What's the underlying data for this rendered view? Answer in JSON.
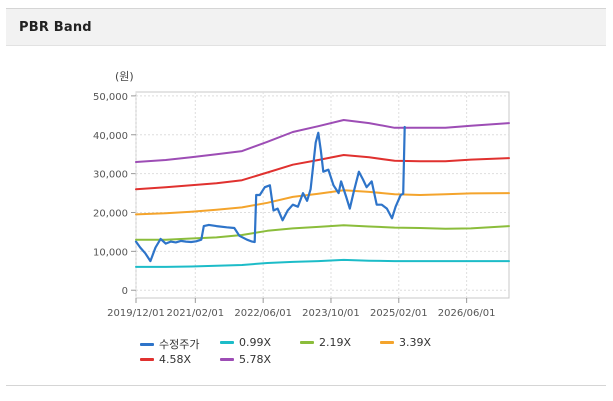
{
  "header": {
    "title": "PBR Band"
  },
  "chart_data": {
    "type": "line",
    "unit_label": "(원)",
    "y_ticks": [
      "50,000",
      "40,000",
      "30,000",
      "20,000",
      "10,000",
      "0"
    ],
    "y_tick_values": [
      50000,
      40000,
      30000,
      20000,
      10000,
      0
    ],
    "ylim": [
      -2000,
      51000
    ],
    "x_ticks": [
      "2019/12/01",
      "2021/02/01",
      "2022/06/01",
      "2023/10/01",
      "2025/02/01",
      "2026/06/01"
    ],
    "x_tick_values": [
      2019.917,
      2021.083,
      2022.417,
      2023.75,
      2025.083,
      2026.417
    ],
    "xlim": [
      2019.917,
      2027.25
    ],
    "grid": true,
    "legend_position": "bottom",
    "series": [
      {
        "name": "수정주가",
        "color": "#2e74c9",
        "width": 2.2,
        "points": [
          [
            2019.917,
            12500
          ],
          [
            2020.0,
            11000
          ],
          [
            2020.1,
            9500
          ],
          [
            2020.2,
            7500
          ],
          [
            2020.3,
            11000
          ],
          [
            2020.4,
            13200
          ],
          [
            2020.5,
            12000
          ],
          [
            2020.6,
            12500
          ],
          [
            2020.7,
            12300
          ],
          [
            2020.8,
            12700
          ],
          [
            2020.9,
            12500
          ],
          [
            2021.0,
            12400
          ],
          [
            2021.1,
            12600
          ],
          [
            2021.2,
            13000
          ],
          [
            2021.25,
            16500
          ],
          [
            2021.35,
            16800
          ],
          [
            2021.5,
            16500
          ],
          [
            2021.7,
            16200
          ],
          [
            2021.85,
            16000
          ],
          [
            2021.95,
            14000
          ],
          [
            2022.1,
            13000
          ],
          [
            2022.2,
            12500
          ],
          [
            2022.25,
            12400
          ],
          [
            2022.28,
            24500
          ],
          [
            2022.35,
            24500
          ],
          [
            2022.45,
            26500
          ],
          [
            2022.55,
            27000
          ],
          [
            2022.62,
            20500
          ],
          [
            2022.7,
            21000
          ],
          [
            2022.8,
            18000
          ],
          [
            2022.9,
            20500
          ],
          [
            2023.0,
            22000
          ],
          [
            2023.1,
            21500
          ],
          [
            2023.2,
            25000
          ],
          [
            2023.28,
            23000
          ],
          [
            2023.35,
            26000
          ],
          [
            2023.45,
            38000
          ],
          [
            2023.5,
            40500
          ],
          [
            2023.55,
            36000
          ],
          [
            2023.6,
            30500
          ],
          [
            2023.7,
            31000
          ],
          [
            2023.8,
            27000
          ],
          [
            2023.9,
            25000
          ],
          [
            2023.95,
            28000
          ],
          [
            2024.05,
            24000
          ],
          [
            2024.12,
            21000
          ],
          [
            2024.2,
            25500
          ],
          [
            2024.3,
            30500
          ],
          [
            2024.38,
            28500
          ],
          [
            2024.45,
            26500
          ],
          [
            2024.55,
            28000
          ],
          [
            2024.65,
            22000
          ],
          [
            2024.75,
            22000
          ],
          [
            2024.85,
            21000
          ],
          [
            2024.95,
            18500
          ],
          [
            2025.02,
            21500
          ],
          [
            2025.12,
            24500
          ],
          [
            2025.17,
            24800
          ],
          [
            2025.2,
            42000
          ]
        ]
      },
      {
        "name": "0.99X",
        "color": "#1cbcc8",
        "width": 2,
        "points": [
          [
            2019.917,
            6000
          ],
          [
            2020.5,
            6000
          ],
          [
            2021.0,
            6100
          ],
          [
            2021.5,
            6300
          ],
          [
            2022.0,
            6500
          ],
          [
            2022.5,
            7000
          ],
          [
            2023.0,
            7300
          ],
          [
            2023.5,
            7500
          ],
          [
            2024.0,
            7800
          ],
          [
            2024.5,
            7600
          ],
          [
            2025.0,
            7500
          ],
          [
            2025.5,
            7500
          ],
          [
            2026.0,
            7500
          ],
          [
            2026.5,
            7500
          ],
          [
            2027.25,
            7500
          ]
        ]
      },
      {
        "name": "2.19X",
        "color": "#8bbd3b",
        "width": 2,
        "points": [
          [
            2019.917,
            13000
          ],
          [
            2020.5,
            13000
          ],
          [
            2021.0,
            13300
          ],
          [
            2021.5,
            13600
          ],
          [
            2022.0,
            14200
          ],
          [
            2022.5,
            15300
          ],
          [
            2023.0,
            15900
          ],
          [
            2023.5,
            16300
          ],
          [
            2024.0,
            16700
          ],
          [
            2024.5,
            16400
          ],
          [
            2025.0,
            16100
          ],
          [
            2025.5,
            16000
          ],
          [
            2026.0,
            15800
          ],
          [
            2026.5,
            15900
          ],
          [
            2027.25,
            16500
          ]
        ]
      },
      {
        "name": "3.39X",
        "color": "#f4a42c",
        "width": 2,
        "points": [
          [
            2019.917,
            19500
          ],
          [
            2020.5,
            19800
          ],
          [
            2021.0,
            20200
          ],
          [
            2021.5,
            20700
          ],
          [
            2022.0,
            21300
          ],
          [
            2022.5,
            22500
          ],
          [
            2023.0,
            24000
          ],
          [
            2023.5,
            24800
          ],
          [
            2024.0,
            25700
          ],
          [
            2024.5,
            25300
          ],
          [
            2025.0,
            24700
          ],
          [
            2025.5,
            24500
          ],
          [
            2026.0,
            24700
          ],
          [
            2026.5,
            24900
          ],
          [
            2027.25,
            25000
          ]
        ]
      },
      {
        "name": "4.58X",
        "color": "#e0312f",
        "width": 2,
        "points": [
          [
            2019.917,
            26000
          ],
          [
            2020.5,
            26500
          ],
          [
            2021.0,
            27000
          ],
          [
            2021.5,
            27500
          ],
          [
            2022.0,
            28300
          ],
          [
            2022.5,
            30300
          ],
          [
            2023.0,
            32300
          ],
          [
            2023.5,
            33500
          ],
          [
            2024.0,
            34800
          ],
          [
            2024.5,
            34200
          ],
          [
            2025.0,
            33300
          ],
          [
            2025.5,
            33200
          ],
          [
            2026.0,
            33200
          ],
          [
            2026.5,
            33600
          ],
          [
            2027.25,
            34000
          ]
        ]
      },
      {
        "name": "5.78X",
        "color": "#9d4db5",
        "width": 2,
        "points": [
          [
            2019.917,
            33000
          ],
          [
            2020.5,
            33500
          ],
          [
            2021.0,
            34200
          ],
          [
            2021.5,
            35000
          ],
          [
            2022.0,
            35800
          ],
          [
            2022.5,
            38200
          ],
          [
            2023.0,
            40700
          ],
          [
            2023.5,
            42200
          ],
          [
            2024.0,
            43800
          ],
          [
            2024.5,
            43000
          ],
          [
            2025.0,
            41800
          ],
          [
            2025.5,
            41800
          ],
          [
            2026.0,
            41800
          ],
          [
            2026.5,
            42300
          ],
          [
            2027.25,
            43000
          ]
        ]
      }
    ]
  }
}
